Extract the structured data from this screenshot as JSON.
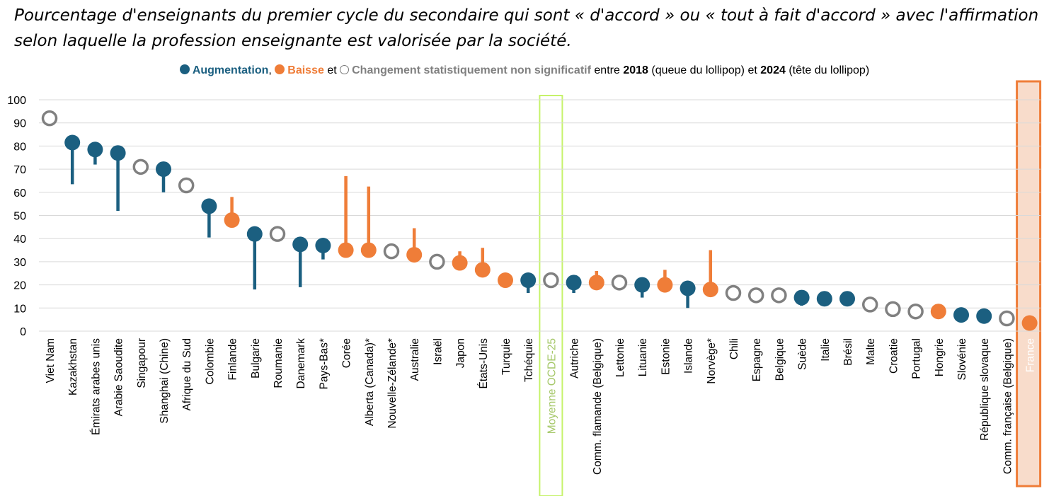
{
  "chart_data": {
    "type": "lollipop",
    "title": "Pourcentage d'enseignants du premier cycle du secondaire qui sont « d'accord » ou « tout à fait d'accord » avec l'affirmation selon laquelle la profession enseignante est valorisée par la société.",
    "legend": {
      "increase_label": "Augmentation",
      "sep1": ",",
      "decrease_label": "Baisse",
      "and1": "et",
      "ns_label": "Changement statistiquement non significatif",
      "between": "entre",
      "year_2018": "2018",
      "tail_note": "(queue du lollipop)",
      "and2": "et",
      "year_2024": "2024",
      "head_note": "(tête du lollipop)"
    },
    "ylim": [
      0,
      100
    ],
    "yticks": [
      0,
      10,
      20,
      30,
      40,
      50,
      60,
      70,
      80,
      90,
      100
    ],
    "colors": {
      "increase": "#1b5f80",
      "decrease": "#ef7d38",
      "ns": "#808080",
      "oecd_highlight": "#c6f26a",
      "france_highlight": "#ef7d38"
    },
    "points": [
      {
        "label": "Viet Nam",
        "v2024": 92,
        "v2018": null,
        "status": "ns"
      },
      {
        "label": "Kazakhstan",
        "v2024": 81.5,
        "v2018": 63.5,
        "status": "inc"
      },
      {
        "label": "Émirats arabes unis",
        "v2024": 78.5,
        "v2018": 72,
        "status": "inc"
      },
      {
        "label": "Arabie Saoudite",
        "v2024": 77,
        "v2018": 52,
        "status": "inc"
      },
      {
        "label": "Singapour",
        "v2024": 71,
        "v2018": null,
        "status": "ns"
      },
      {
        "label": "Shanghai (Chine)",
        "v2024": 70,
        "v2018": 60,
        "status": "inc"
      },
      {
        "label": "Afrique du Sud",
        "v2024": 63,
        "v2018": null,
        "status": "ns"
      },
      {
        "label": "Colombie",
        "v2024": 54,
        "v2018": 40.5,
        "status": "inc"
      },
      {
        "label": "Finlande",
        "v2024": 48,
        "v2018": 58,
        "status": "dec"
      },
      {
        "label": "Bulgarie",
        "v2024": 42,
        "v2018": 18,
        "status": "inc"
      },
      {
        "label": "Roumanie",
        "v2024": 42,
        "v2018": null,
        "status": "ns"
      },
      {
        "label": "Danemark",
        "v2024": 37.5,
        "v2018": 19,
        "status": "inc"
      },
      {
        "label": "Pays-Bas*",
        "v2024": 37,
        "v2018": 31,
        "status": "inc"
      },
      {
        "label": "Corée",
        "v2024": 35,
        "v2018": 67,
        "status": "dec"
      },
      {
        "label": "Alberta (Canada)*",
        "v2024": 35,
        "v2018": 62.5,
        "status": "dec"
      },
      {
        "label": "Nouvelle-Zélande*",
        "v2024": 34.5,
        "v2018": null,
        "status": "ns"
      },
      {
        "label": "Australie",
        "v2024": 33,
        "v2018": 44.5,
        "status": "dec"
      },
      {
        "label": "Israël",
        "v2024": 30,
        "v2018": null,
        "status": "ns"
      },
      {
        "label": "Japon",
        "v2024": 29.5,
        "v2018": 34.5,
        "status": "dec"
      },
      {
        "label": "États-Unis",
        "v2024": 26.5,
        "v2018": 36,
        "status": "dec"
      },
      {
        "label": "Turquie",
        "v2024": 22,
        "v2018": 24.5,
        "status": "dec"
      },
      {
        "label": "Tchéquie",
        "v2024": 22,
        "v2018": 16.5,
        "status": "inc"
      },
      {
        "label": "Moyenne OCDE-25",
        "v2024": 22,
        "v2018": null,
        "status": "ns",
        "highlight": "oecd"
      },
      {
        "label": "Autriche",
        "v2024": 21,
        "v2018": 16.5,
        "status": "inc"
      },
      {
        "label": "Comm. flamande (Belgique)",
        "v2024": 21,
        "v2018": 26,
        "status": "dec"
      },
      {
        "label": "Lettonie",
        "v2024": 21,
        "v2018": null,
        "status": "ns"
      },
      {
        "label": "Lituanie",
        "v2024": 20,
        "v2018": 14.5,
        "status": "inc"
      },
      {
        "label": "Estonie",
        "v2024": 20,
        "v2018": 26.5,
        "status": "dec"
      },
      {
        "label": "Islande",
        "v2024": 18.5,
        "v2018": 10,
        "status": "inc"
      },
      {
        "label": "Norvège*",
        "v2024": 18,
        "v2018": 35,
        "status": "dec"
      },
      {
        "label": "Chili",
        "v2024": 16.5,
        "v2018": null,
        "status": "ns"
      },
      {
        "label": "Espagne",
        "v2024": 15.5,
        "v2018": null,
        "status": "ns"
      },
      {
        "label": "Belgique",
        "v2024": 15.5,
        "v2018": null,
        "status": "ns"
      },
      {
        "label": "Suède",
        "v2024": 14.5,
        "v2018": 11,
        "status": "inc"
      },
      {
        "label": "Italie",
        "v2024": 14,
        "v2018": 13,
        "status": "inc"
      },
      {
        "label": "Brésil",
        "v2024": 14,
        "v2018": 13,
        "status": "inc"
      },
      {
        "label": "Malte",
        "v2024": 11.5,
        "v2018": null,
        "status": "ns"
      },
      {
        "label": "Croatie",
        "v2024": 9.5,
        "v2018": null,
        "status": "ns"
      },
      {
        "label": "Portugal",
        "v2024": 8.5,
        "v2018": null,
        "status": "ns"
      },
      {
        "label": "Hongrie",
        "v2024": 8.5,
        "v2018": 9.5,
        "status": "dec"
      },
      {
        "label": "Slovénie",
        "v2024": 7,
        "v2018": 6,
        "status": "inc"
      },
      {
        "label": "République slovaque",
        "v2024": 6.5,
        "v2018": 5.5,
        "status": "inc"
      },
      {
        "label": "Comm. française (Belgique)",
        "v2024": 5.5,
        "v2018": null,
        "status": "ns"
      },
      {
        "label": "France",
        "v2024": 3.5,
        "v2018": 4.5,
        "status": "dec",
        "highlight": "france"
      }
    ]
  }
}
